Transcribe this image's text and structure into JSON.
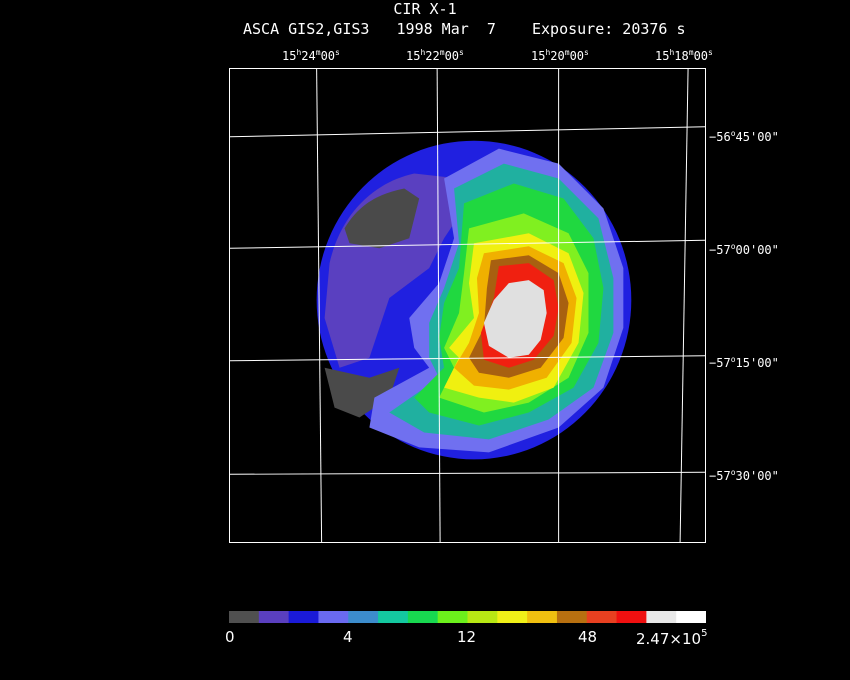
{
  "title": "CIR X-1",
  "subtitle": "ASCA GIS2,GIS3   1998 Mar  7    Exposure: 20376 s",
  "ra_labels": [
    {
      "h": "15",
      "m": "24",
      "s": "00"
    },
    {
      "h": "15",
      "m": "22",
      "s": "00"
    },
    {
      "h": "15",
      "m": "20",
      "s": "00"
    },
    {
      "h": "15",
      "m": "18",
      "s": "00"
    }
  ],
  "dec_labels": [
    {
      "d": "−56",
      "rest": "45'00\""
    },
    {
      "d": "−57",
      "rest": "00'00\""
    },
    {
      "d": "−57",
      "rest": "15'00\""
    },
    {
      "d": "−57",
      "rest": "30'00\""
    }
  ],
  "colorbar": {
    "labels": [
      "0",
      "4",
      "12",
      "48"
    ],
    "max_mantissa": "2.47×10",
    "max_exp": "5",
    "colors": [
      "#505050",
      "#5a3fbf",
      "#1a1ad8",
      "#6a6af0",
      "#3c8ccc",
      "#14c8a0",
      "#18d850",
      "#6cf01c",
      "#b8e814",
      "#f0f018",
      "#f0c010",
      "#b87010",
      "#e84020",
      "#f01010",
      "#e8e8e8",
      "#ffffff"
    ]
  },
  "image_colors": {
    "gray": "#4a4a4a",
    "purple": "#5a40c0",
    "blue": "#2020e0",
    "lightblue": "#7070f0",
    "teal": "#20b0a0",
    "green": "#20d840",
    "lime": "#80f020",
    "yellow": "#f0f010",
    "orange": "#f0b000",
    "brown": "#a86010",
    "red": "#f02010",
    "white": "#e0e0e0"
  }
}
